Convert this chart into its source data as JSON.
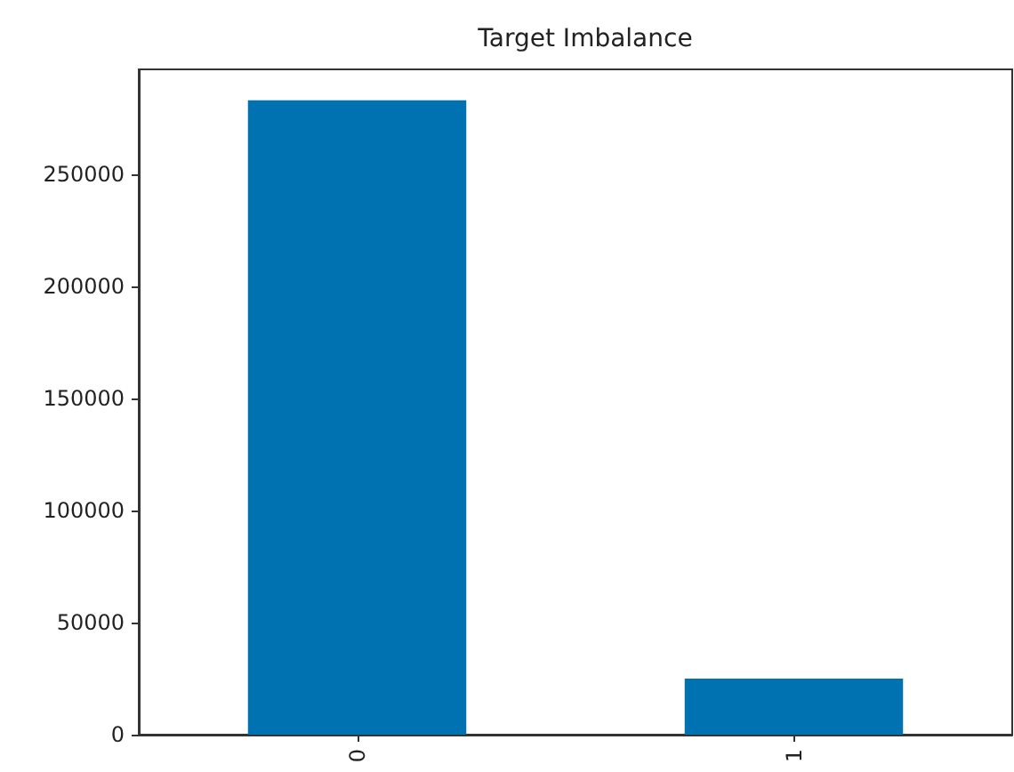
{
  "chart_data": {
    "type": "bar",
    "title": "Target Imbalance",
    "categories": [
      "0",
      "1"
    ],
    "values": [
      283000,
      25000
    ],
    "color": "#0072b2",
    "ylim": [
      0,
      296800
    ],
    "yticks": [
      0,
      50000,
      100000,
      150000,
      200000,
      250000
    ],
    "grid": false
  }
}
